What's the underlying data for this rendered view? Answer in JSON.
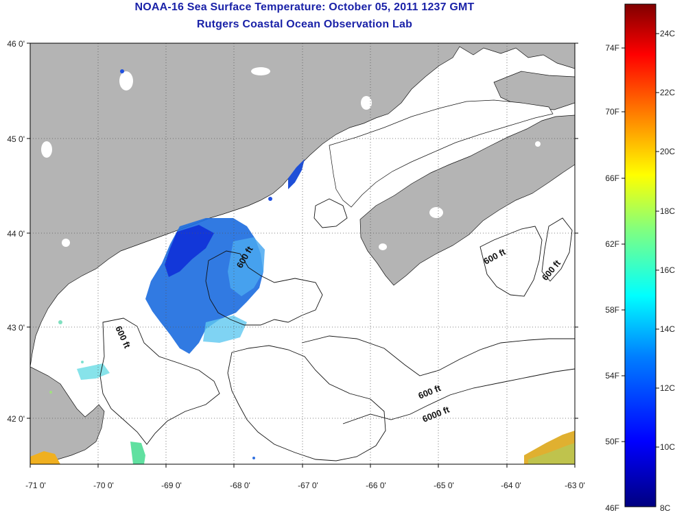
{
  "title": "NOAA-16 Sea Surface Temperature:  October 05, 2011 1237 GMT",
  "subtitle": "Rutgers Coastal Ocean Observation Lab",
  "longitude_labels": [
    "-71 0'",
    "-70 0'",
    "-69 0'",
    "-68 0'",
    "-67 0'",
    "-66 0'",
    "-65 0'",
    "-64 0'",
    "-63 0'"
  ],
  "latitude_labels": [
    "46 0'",
    "45 0'",
    "44 0'",
    "43 0'",
    "42 0'"
  ],
  "contour_labels": [
    "600 ft",
    "600 ft",
    "600 ft",
    "600 ft",
    "600 ft",
    "6000 ft"
  ],
  "colorbar": {
    "fahrenheit_labels": [
      "74F",
      "70F",
      "66F",
      "62F",
      "58F",
      "54F",
      "50F",
      "46F"
    ],
    "celsius_labels": [
      "24C",
      "22C",
      "20C",
      "18C",
      "16C",
      "14C",
      "12C",
      "10C",
      "8C"
    ],
    "range_c": [
      8,
      25
    ],
    "colors": [
      "#000080",
      "#0000ff",
      "#0080ff",
      "#00ffff",
      "#80ff80",
      "#ffff00",
      "#ff8000",
      "#ff0000",
      "#800000"
    ]
  },
  "colors": {
    "land": "#b4b4b4",
    "sea": "#ffffff",
    "title": "#1a22a8",
    "gridline": "#555555"
  }
}
